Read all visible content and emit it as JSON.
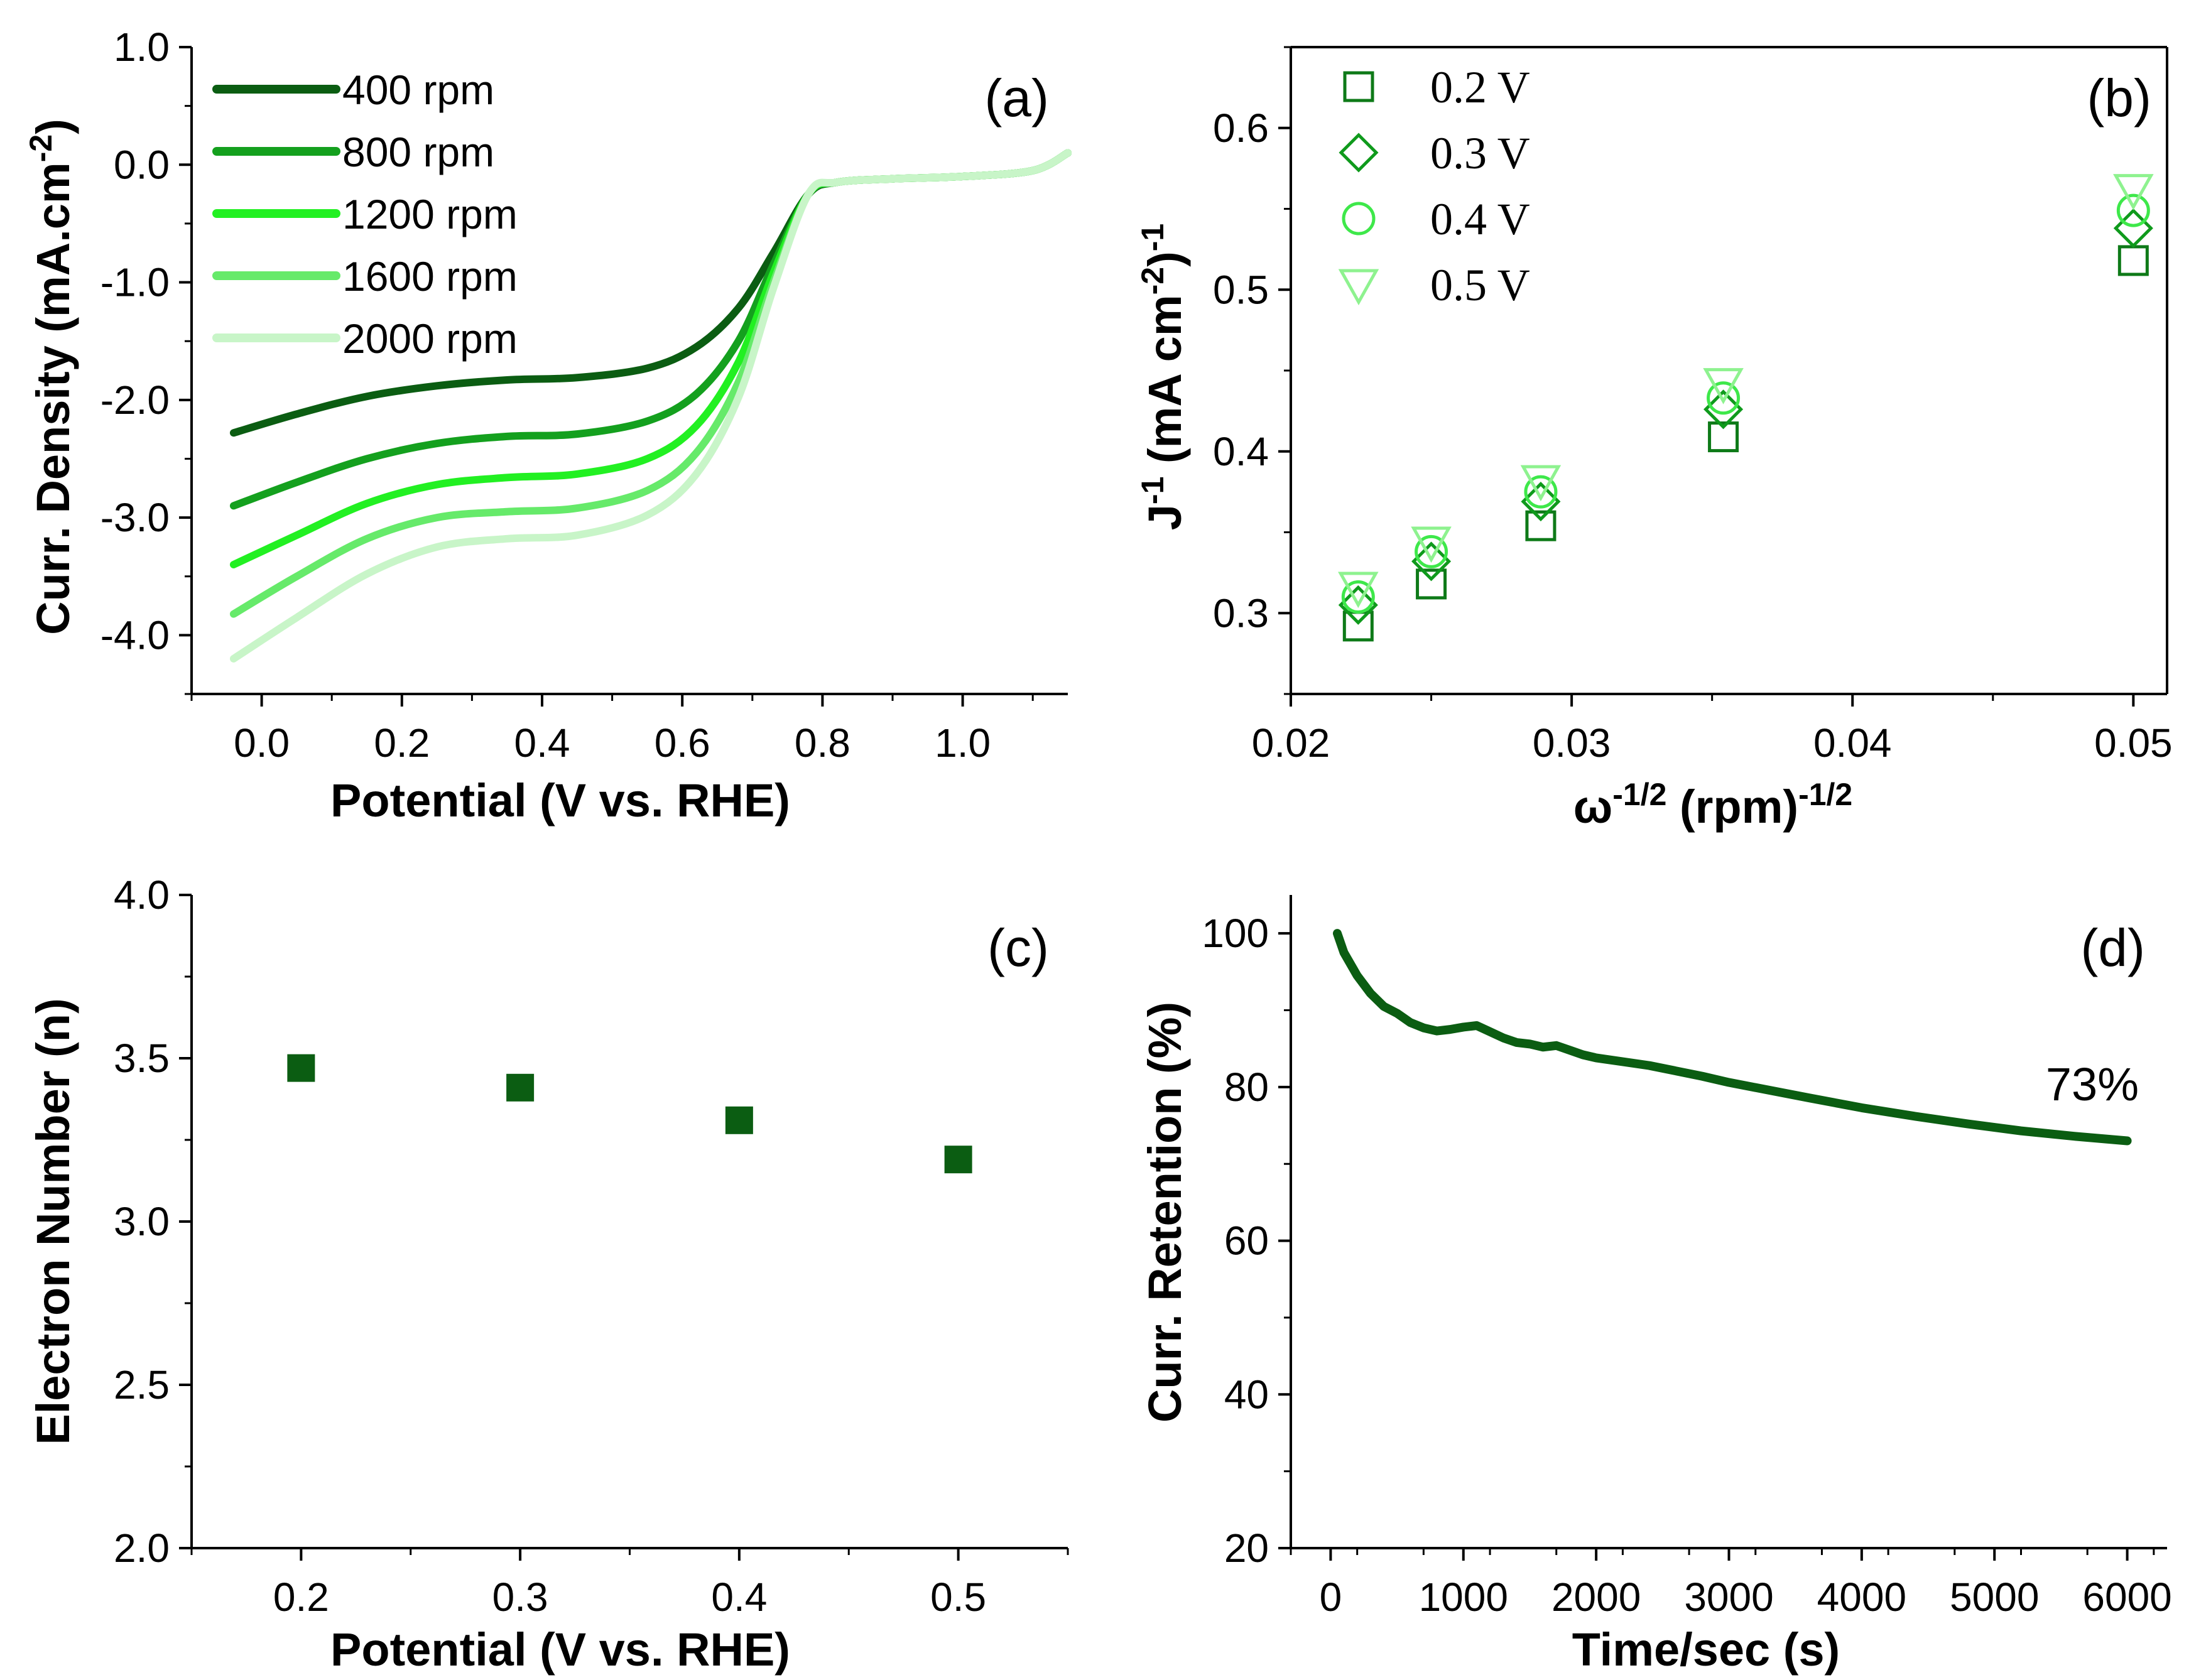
{
  "colors": {
    "axis": "#000000",
    "rpm400": "#0b5d12",
    "rpm800": "#14a01e",
    "rpm1200": "#22f022",
    "rpm1600": "#66ea6a",
    "rpm2000": "#c8f5c8",
    "v02": "#0e7a18",
    "v03": "#0f9a1c",
    "v04": "#3ee84a",
    "v05": "#8ef28f",
    "c_marker": "#0b5d12",
    "d_line": "#0b5d12"
  },
  "chart_data": [
    {
      "id": "a",
      "panel_label": "(a)",
      "type": "line",
      "xlabel": "Potential (V vs. RHE)",
      "ylabel_main": "Curr. Density (mA.cm",
      "ylabel_sup": "-2",
      "ylabel_end": ")",
      "xlim": [
        -0.1,
        1.15
      ],
      "ylim": [
        -4.5,
        1.0
      ],
      "xticks": [
        0.0,
        0.2,
        0.4,
        0.6,
        0.8,
        1.0
      ],
      "xtick_labels": [
        "0.0",
        "0.2",
        "0.4",
        "0.6",
        "0.8",
        "1.0"
      ],
      "yticks": [
        1.0,
        0.0,
        -1.0,
        -2.0,
        -3.0,
        -4.0
      ],
      "ytick_labels": [
        "1.0",
        "0.0",
        "-1.0",
        "-2.0",
        "-3.0",
        "-4.0"
      ],
      "legend_position": "top-left",
      "series": [
        {
          "name": "400 rpm",
          "color_key": "rpm400",
          "x": [
            -0.04,
            0.05,
            0.15,
            0.25,
            0.35,
            0.45,
            0.55,
            0.62,
            0.68,
            0.73,
            0.78,
            0.82,
            0.9,
            1.0,
            1.1,
            1.15
          ],
          "y": [
            -2.28,
            -2.12,
            -1.97,
            -1.88,
            -1.83,
            -1.81,
            -1.73,
            -1.55,
            -1.22,
            -0.75,
            -0.25,
            -0.15,
            -0.12,
            -0.1,
            -0.05,
            0.1
          ]
        },
        {
          "name": "800 rpm",
          "color_key": "rpm800",
          "x": [
            -0.04,
            0.05,
            0.15,
            0.25,
            0.35,
            0.45,
            0.55,
            0.62,
            0.68,
            0.73,
            0.78,
            0.82,
            0.9,
            1.0,
            1.1,
            1.15
          ],
          "y": [
            -2.9,
            -2.7,
            -2.5,
            -2.37,
            -2.31,
            -2.29,
            -2.18,
            -1.95,
            -1.5,
            -0.85,
            -0.25,
            -0.15,
            -0.12,
            -0.1,
            -0.05,
            0.1
          ]
        },
        {
          "name": "1200 rpm",
          "color_key": "rpm1200",
          "x": [
            -0.04,
            0.05,
            0.15,
            0.25,
            0.35,
            0.45,
            0.55,
            0.62,
            0.68,
            0.73,
            0.78,
            0.82,
            0.9,
            1.0,
            1.1,
            1.15
          ],
          "y": [
            -3.4,
            -3.15,
            -2.88,
            -2.72,
            -2.66,
            -2.63,
            -2.5,
            -2.22,
            -1.68,
            -0.92,
            -0.25,
            -0.15,
            -0.12,
            -0.1,
            -0.05,
            0.1
          ]
        },
        {
          "name": "1600 rpm",
          "color_key": "rpm1600",
          "x": [
            -0.04,
            0.05,
            0.15,
            0.25,
            0.35,
            0.45,
            0.55,
            0.62,
            0.68,
            0.73,
            0.78,
            0.82,
            0.9,
            1.0,
            1.1,
            1.15
          ],
          "y": [
            -3.82,
            -3.5,
            -3.18,
            -3.0,
            -2.95,
            -2.92,
            -2.77,
            -2.45,
            -1.85,
            -1.0,
            -0.25,
            -0.15,
            -0.12,
            -0.1,
            -0.05,
            0.1
          ]
        },
        {
          "name": "2000 rpm",
          "color_key": "rpm2000",
          "x": [
            -0.04,
            0.05,
            0.15,
            0.25,
            0.35,
            0.45,
            0.55,
            0.62,
            0.68,
            0.73,
            0.78,
            0.82,
            0.9,
            1.0,
            1.1,
            1.15
          ],
          "y": [
            -4.2,
            -3.85,
            -3.48,
            -3.25,
            -3.18,
            -3.15,
            -2.98,
            -2.63,
            -1.98,
            -1.05,
            -0.25,
            -0.15,
            -0.12,
            -0.1,
            -0.05,
            0.1
          ]
        }
      ]
    },
    {
      "id": "b",
      "panel_label": "(b)",
      "type": "scatter",
      "xlabel_main": "ω",
      "xlabel_sup1": "-1/2",
      "xlabel_mid": " (rpm)",
      "xlabel_sup2": "-1/2",
      "ylabel_J": "J",
      "ylabel_Jsup": "-1",
      "ylabel_mid": " (mA cm",
      "ylabel_sup": "-2",
      "ylabel_end": ")",
      "ylabel_outsup": "-1",
      "xlim": [
        0.02,
        0.0512
      ],
      "ylim": [
        0.25,
        0.65
      ],
      "xticks": [
        0.02,
        0.03,
        0.04,
        0.05
      ],
      "xtick_labels": [
        "0.02",
        "0.03",
        "0.04",
        "0.05"
      ],
      "yticks": [
        0.3,
        0.4,
        0.5,
        0.6
      ],
      "ytick_labels": [
        "0.3",
        "0.4",
        "0.5",
        "0.6"
      ],
      "legend_position": "top-left",
      "x": [
        0.0224,
        0.025,
        0.0289,
        0.0354,
        0.05
      ],
      "series": [
        {
          "name": "0.2 V",
          "marker": "square",
          "color_key": "v02",
          "values": [
            0.292,
            0.318,
            0.354,
            0.409,
            0.518
          ]
        },
        {
          "name": "0.3 V",
          "marker": "diamond",
          "color_key": "v03",
          "values": [
            0.305,
            0.332,
            0.369,
            0.426,
            0.538
          ]
        },
        {
          "name": "0.4 V",
          "marker": "circle",
          "color_key": "v04",
          "values": [
            0.31,
            0.338,
            0.375,
            0.433,
            0.549
          ]
        },
        {
          "name": "0.5 V",
          "marker": "triangle-down",
          "color_key": "v05",
          "values": [
            0.316,
            0.344,
            0.382,
            0.442,
            0.562
          ]
        }
      ]
    },
    {
      "id": "c",
      "panel_label": "(c)",
      "type": "scatter",
      "xlabel": "Potential (V vs. RHE)",
      "ylabel": "Electron Number (n)",
      "xlim": [
        0.15,
        0.55
      ],
      "ylim": [
        2.0,
        4.0
      ],
      "xticks": [
        0.2,
        0.3,
        0.4,
        0.5
      ],
      "xtick_labels": [
        "0.2",
        "0.3",
        "0.4",
        "0.5"
      ],
      "yticks": [
        2.0,
        2.5,
        3.0,
        3.5,
        4.0
      ],
      "ytick_labels": [
        "2.0",
        "2.5",
        "3.0",
        "3.5",
        "4.0"
      ],
      "series": [
        {
          "name": "n",
          "marker": "filled-square",
          "color_key": "c_marker",
          "x": [
            0.2,
            0.3,
            0.4,
            0.5
          ],
          "values": [
            3.47,
            3.41,
            3.31,
            3.19
          ]
        }
      ]
    },
    {
      "id": "d",
      "panel_label": "(d)",
      "type": "line",
      "xlabel": "Time/sec (s)",
      "ylabel": "Curr. Retention (%)",
      "annotation": "73%",
      "xlim": [
        -300,
        6300
      ],
      "ylim": [
        20,
        105
      ],
      "xticks": [
        0,
        1000,
        2000,
        3000,
        4000,
        5000,
        6000
      ],
      "xtick_labels": [
        "0",
        "1000",
        "2000",
        "3000",
        "4000",
        "5000",
        "6000"
      ],
      "yticks": [
        20,
        40,
        60,
        80,
        100
      ],
      "ytick_labels": [
        "20",
        "40",
        "60",
        "80",
        "100"
      ],
      "series": [
        {
          "name": "retention",
          "color_key": "d_line",
          "x": [
            50,
            100,
            200,
            300,
            400,
            500,
            600,
            700,
            800,
            900,
            1000,
            1100,
            1200,
            1300,
            1400,
            1500,
            1600,
            1700,
            1800,
            1900,
            2000,
            2200,
            2400,
            2600,
            2800,
            3000,
            3300,
            3600,
            4000,
            4400,
            4800,
            5200,
            5600,
            6000
          ],
          "values": [
            100,
            97.5,
            94.5,
            92.2,
            90.5,
            89.6,
            88.4,
            87.7,
            87.3,
            87.5,
            87.8,
            88.0,
            87.2,
            86.4,
            85.8,
            85.6,
            85.2,
            85.4,
            84.8,
            84.2,
            83.8,
            83.3,
            82.8,
            82.1,
            81.4,
            80.6,
            79.6,
            78.6,
            77.3,
            76.2,
            75.2,
            74.3,
            73.6,
            73.0
          ]
        }
      ]
    }
  ]
}
